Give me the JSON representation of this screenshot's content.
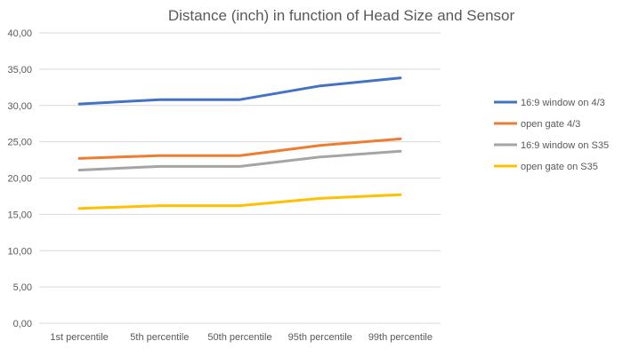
{
  "chart_data": {
    "type": "line",
    "title": "Distance (inch) in function of Head Size and Sensor",
    "xlabel": "",
    "ylabel": "",
    "categories": [
      "1st percentile",
      "5th percentile",
      "50th percentile",
      "95th percentile",
      "99th percentile"
    ],
    "ylim": [
      0,
      40
    ],
    "yticks": [
      "0,00",
      "5,00",
      "10,00",
      "15,00",
      "20,00",
      "25,00",
      "30,00",
      "35,00",
      "40,00"
    ],
    "grid": true,
    "legend_position": "right",
    "series": [
      {
        "name": "16:9 window on 4/3",
        "color": "#4472C4",
        "values": [
          30.2,
          30.8,
          30.8,
          32.7,
          33.8
        ]
      },
      {
        "name": "open gate 4/3",
        "color": "#ED7D31",
        "values": [
          22.7,
          23.1,
          23.1,
          24.5,
          25.4
        ]
      },
      {
        "name": "16:9 window on S35",
        "color": "#A5A5A5",
        "values": [
          21.1,
          21.6,
          21.6,
          22.9,
          23.7
        ]
      },
      {
        "name": "open gate on S35",
        "color": "#FFC000",
        "values": [
          15.8,
          16.2,
          16.2,
          17.2,
          17.7
        ]
      }
    ]
  }
}
